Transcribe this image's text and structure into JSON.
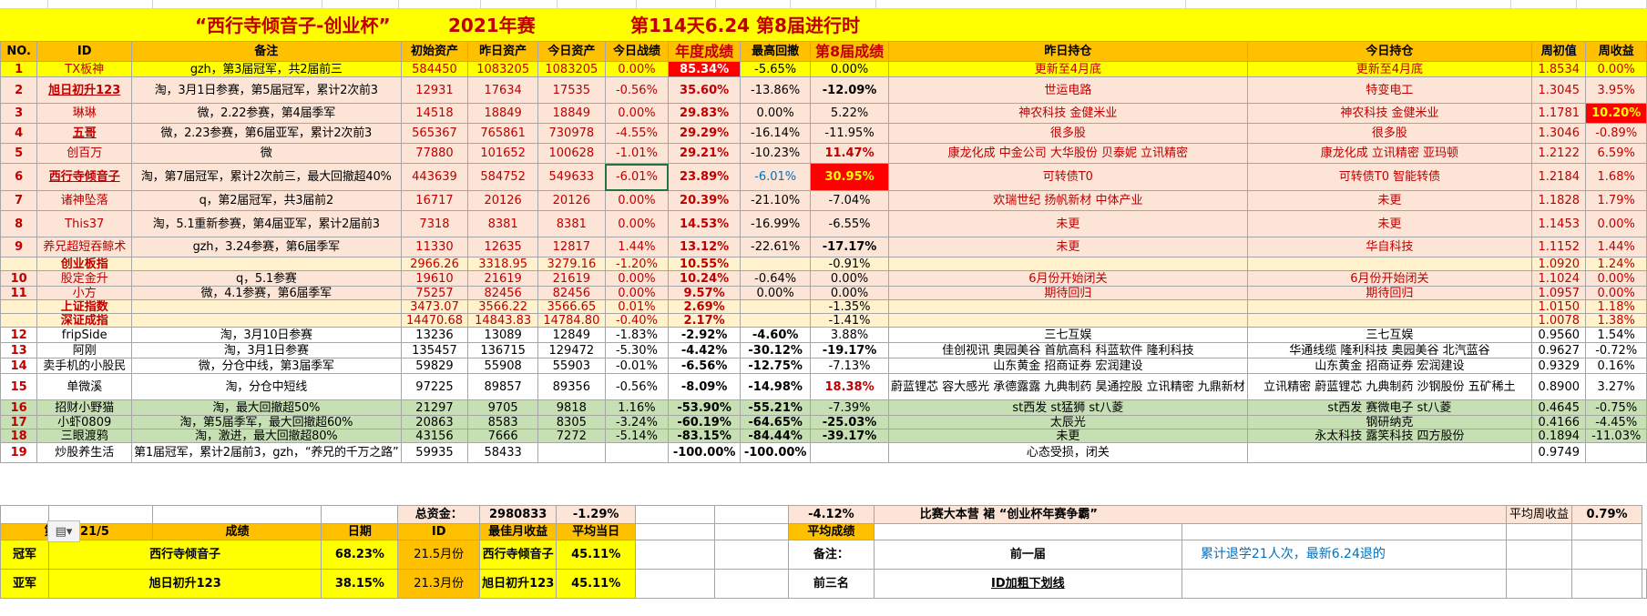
{
  "colors": {
    "header": "#ffc000",
    "title_bg": "#ffff00",
    "pink": "#fce4d6",
    "index_pale": "#fff2cc",
    "green": "#c6e0b4",
    "white": "#ffffff",
    "red": "#ff0000",
    "red_text": "#c00000",
    "blue_text": "#0070c0"
  },
  "title": {
    "main": "“西行寺倾音子-创业杯”",
    "year": "2021年赛",
    "day": "第114天6.24 第8届进行时"
  },
  "headers": {
    "no": "NO.",
    "id": "ID",
    "note": "备注",
    "init": "初始资产",
    "yest": "昨日资产",
    "today": "今日资产",
    "today_result": "今日战绩",
    "annual": "年度成绩",
    "max_dd": "最高回撤",
    "s8": "第8届成绩",
    "yest_hold": "昨日持仓",
    "today_hold": "今日持仓",
    "week_init": "周初值",
    "week_ret": "周收益"
  },
  "rows": [
    {
      "no": "1",
      "id": "TX板神",
      "note": "gzh，第3届冠军，共2届前三",
      "init": "584450",
      "yest": "1083205",
      "today": "1083205",
      "tr": "0.00%",
      "annual": "85.34%",
      "dd": "-5.65%",
      "s8": "0.00%",
      "yh": "更新至4月底",
      "th": "更新至4月底",
      "wi": "1.8534",
      "wr": "0.00%"
    },
    {
      "no": "2",
      "id": "旭日初升123",
      "note": "淘，3月1日参赛，第5届冠军，累计2次前3",
      "init": "12931",
      "yest": "17634",
      "today": "17535",
      "tr": "-0.56%",
      "annual": "35.60%",
      "dd": "-13.86%",
      "s8": "-12.09%",
      "yh": "世运电路",
      "th": "特变电工",
      "wi": "1.3045",
      "wr": "3.95%"
    },
    {
      "no": "3",
      "id": "琳琳",
      "note": "微，2.22参赛，第4届季军",
      "init": "14518",
      "yest": "18849",
      "today": "18849",
      "tr": "0.00%",
      "annual": "29.83%",
      "dd": "0.00%",
      "s8": "5.22%",
      "yh": "神农科技 金健米业",
      "th": "神农科技 金健米业",
      "wi": "1.1781",
      "wr": "10.20%"
    },
    {
      "no": "4",
      "id": "五哥",
      "note": "微，2.23参赛，第6届亚军，累计2次前3",
      "init": "565367",
      "yest": "765861",
      "today": "730978",
      "tr": "-4.55%",
      "annual": "29.29%",
      "dd": "-16.14%",
      "s8": "-11.95%",
      "yh": "很多股",
      "th": "很多股",
      "wi": "1.3046",
      "wr": "-0.89%"
    },
    {
      "no": "5",
      "id": "创百万",
      "note": "微",
      "init": "77880",
      "yest": "101652",
      "today": "100628",
      "tr": "-1.01%",
      "annual": "29.21%",
      "dd": "-10.23%",
      "s8": "11.47%",
      "yh": "康龙化成 中金公司 大华股份 贝泰妮 立讯精密",
      "th": "康龙化成 立讯精密 亚玛顿",
      "wi": "1.2122",
      "wr": "6.59%"
    },
    {
      "no": "6",
      "id": "西行寺倾音子",
      "note": "淘，第7届冠军，累计2次前三，最大回撤超40%",
      "init": "443639",
      "yest": "584752",
      "today": "549633",
      "tr": "-6.01%",
      "annual": "23.89%",
      "dd": "-6.01%",
      "s8": "30.95%",
      "yh": "可转债T0",
      "th": "可转债T0 智能转债",
      "wi": "1.2184",
      "wr": "1.68%"
    },
    {
      "no": "7",
      "id": "诸神坠落",
      "note": "q，第2届冠军，共3届前2",
      "init": "16717",
      "yest": "20126",
      "today": "20126",
      "tr": "0.00%",
      "annual": "20.39%",
      "dd": "-21.10%",
      "s8": "-7.04%",
      "yh": "欢瑞世纪 扬帆新材 中体产业",
      "th": "未更",
      "wi": "1.1828",
      "wr": "1.79%"
    },
    {
      "no": "8",
      "id": "This37",
      "note": "淘，5.1重新参赛，第4届亚军，累计2届前3",
      "init": "7318",
      "yest": "8381",
      "today": "8381",
      "tr": "0.00%",
      "annual": "14.53%",
      "dd": "-16.99%",
      "s8": "-6.55%",
      "yh": "未更",
      "th": "未更",
      "wi": "1.1453",
      "wr": "0.00%"
    },
    {
      "no": "9",
      "id": "养兄超短吞鲸术",
      "note": "gzh，3.24参赛，第6届季军",
      "init": "11330",
      "yest": "12635",
      "today": "12817",
      "tr": "1.44%",
      "annual": "13.12%",
      "dd": "-22.61%",
      "s8": "-17.17%",
      "yh": "未更",
      "th": "华自科技",
      "wi": "1.1152",
      "wr": "1.44%"
    },
    {
      "no": "",
      "id": "创业板指",
      "note": "",
      "init": "2966.26",
      "yest": "3318.95",
      "today": "3279.16",
      "tr": "-1.20%",
      "annual": "10.55%",
      "dd": "",
      "s8": "-0.91%",
      "yh": "",
      "th": "",
      "wi": "1.0920",
      "wr": "1.24%"
    },
    {
      "no": "10",
      "id": "股定金升",
      "note": "q，5.1参赛",
      "init": "19610",
      "yest": "21619",
      "today": "21619",
      "tr": "0.00%",
      "annual": "10.24%",
      "dd": "-0.64%",
      "s8": "0.00%",
      "yh": "6月份开始闭关",
      "th": "6月份开始闭关",
      "wi": "1.1024",
      "wr": "0.00%"
    },
    {
      "no": "11",
      "id": "小方",
      "note": "微，4.1参赛，第6届季军",
      "init": "75257",
      "yest": "82456",
      "today": "82456",
      "tr": "0.00%",
      "annual": "9.57%",
      "dd": "0.00%",
      "s8": "0.00%",
      "yh": "期待回归",
      "th": "期待回归",
      "wi": "1.0957",
      "wr": "0.00%"
    },
    {
      "no": "",
      "id": "上证指数",
      "note": "",
      "init": "3473.07",
      "yest": "3566.22",
      "today": "3566.65",
      "tr": "0.01%",
      "annual": "2.69%",
      "dd": "",
      "s8": "-1.35%",
      "yh": "",
      "th": "",
      "wi": "1.0150",
      "wr": "1.18%"
    },
    {
      "no": "",
      "id": "深证成指",
      "note": "",
      "init": "14470.68",
      "yest": "14843.83",
      "today": "14784.80",
      "tr": "-0.40%",
      "annual": "2.17%",
      "dd": "",
      "s8": "-1.41%",
      "yh": "",
      "th": "",
      "wi": "1.0078",
      "wr": "1.38%"
    },
    {
      "no": "12",
      "id": "fripSide",
      "note": "淘，3月10日参赛",
      "init": "13236",
      "yest": "13089",
      "today": "12849",
      "tr": "-1.83%",
      "annual": "-2.92%",
      "dd": "-4.60%",
      "s8": "3.88%",
      "yh": "三七互娱",
      "th": "三七互娱",
      "wi": "0.9560",
      "wr": "1.54%"
    },
    {
      "no": "13",
      "id": "阿刚",
      "note": "淘，3月1日参赛",
      "init": "135457",
      "yest": "136715",
      "today": "129472",
      "tr": "-5.30%",
      "annual": "-4.42%",
      "dd": "-30.12%",
      "s8": "-19.17%",
      "yh": "佳创视讯 奥园美谷 首航高科 科蓝软件 隆利科技",
      "th": "华通线缆 隆利科技 奥园美谷 北汽蓝谷",
      "wi": "0.9627",
      "wr": "-0.72%"
    },
    {
      "no": "14",
      "id": "卖手机的小股民",
      "note": "微，分仓中线，第3届季军",
      "init": "59829",
      "yest": "55908",
      "today": "55903",
      "tr": "-0.01%",
      "annual": "-6.56%",
      "dd": "-12.75%",
      "s8": "-7.13%",
      "yh": "山东黄金 招商证券 宏润建设",
      "th": "山东黄金 招商证券 宏润建设",
      "wi": "0.9329",
      "wr": "0.16%"
    },
    {
      "no": "15",
      "id": "单微溪",
      "note": "淘，分仓中短线",
      "init": "97225",
      "yest": "89857",
      "today": "89356",
      "tr": "-0.56%",
      "annual": "-8.09%",
      "dd": "-14.98%",
      "s8": "18.38%",
      "yh": "蔚蓝锂芯 容大感光 承德露露 九典制药 昊通控股 立讯精密 九鼎新材",
      "th": "立讯精密 蔚蓝锂芯 九典制药 沙钢股份 五矿稀土",
      "wi": "0.8900",
      "wr": "3.27%"
    },
    {
      "no": "16",
      "id": "招财小野猫",
      "note": "淘，最大回撤超50%",
      "init": "21297",
      "yest": "9705",
      "today": "9818",
      "tr": "1.16%",
      "annual": "-53.90%",
      "dd": "-55.21%",
      "s8": "-7.39%",
      "yh": "st西发 st猛狮 st八菱",
      "th": "st西发 赛微电子 st八菱",
      "wi": "0.4645",
      "wr": "-0.75%"
    },
    {
      "no": "17",
      "id": "小虾0809",
      "note": "淘，第5届季军，最大回撤超60%",
      "init": "20863",
      "yest": "8583",
      "today": "8305",
      "tr": "-3.24%",
      "annual": "-60.19%",
      "dd": "-64.65%",
      "s8": "-25.03%",
      "yh": "太辰光",
      "th": "钢研纳克",
      "wi": "0.4166",
      "wr": "-4.45%"
    },
    {
      "no": "18",
      "id": "三眼渡鸦",
      "note": "淘，激进，最大回撤超80%",
      "init": "43156",
      "yest": "7666",
      "today": "7272",
      "tr": "-5.14%",
      "annual": "-83.15%",
      "dd": "-84.44%",
      "s8": "-39.17%",
      "yh": "未更",
      "th": "永太科技 露笑科技 四方股份",
      "wi": "0.1894",
      "wr": "-11.03%"
    },
    {
      "no": "19",
      "id": "炒股养生活",
      "note": "第1届冠军，累计2届前3，gzh，“养兄的千万之路”",
      "init": "59935",
      "yest": "58433",
      "today": "",
      "tr": "",
      "annual": "-100.00%",
      "dd": "-100.00%",
      "s8": "",
      "yh": "心态受损，闭关",
      "th": "",
      "wi": "0.9749",
      "wr": ""
    }
  ],
  "summary": {
    "total_label": "总资金：",
    "total_value": "2980833",
    "total_pct": "-1.29%",
    "s8_avg": "-4.12%",
    "slogan": "比赛大本营 裙 “创业杯年赛争霸”",
    "avg_week_label": "平均周收益",
    "avg_week_value": "0.79%"
  },
  "footer_header": {
    "c1": "第7届 21/5",
    "c2": "成绩",
    "c3": "日期",
    "c4": "ID",
    "c5": "最佳月收益",
    "c6": "平均当日",
    "c8": "平均成绩"
  },
  "footer": [
    {
      "rank": "冠军",
      "name": "西行寺倾音子",
      "score": "68.23%",
      "date": "21.5月份",
      "id": "西行寺倾音子",
      "best": "45.11%",
      "note_label": "备注：",
      "note_val": "前一届",
      "remark": "累计退学21人次，最新6.24退的"
    },
    {
      "rank": "亚军",
      "name": "旭日初升123",
      "score": "38.15%",
      "date": "21.3月份",
      "id": "旭日初升123",
      "best": "45.11%",
      "note_label": "前三名",
      "note_val": "ID加粗下划线",
      "remark": ""
    }
  ],
  "paste_icon": "paste-options-icon"
}
